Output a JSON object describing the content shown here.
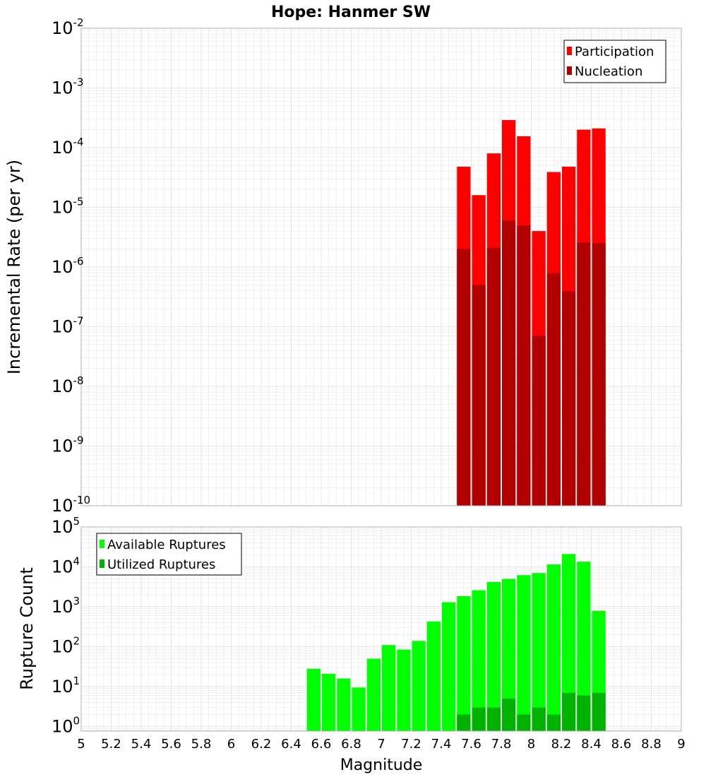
{
  "title": "Hope: Hanmer SW",
  "colors": {
    "participation": "#ff0000",
    "nucleation": "#b20000",
    "available": "#00ff00",
    "utilized": "#00b200",
    "gridline": "#e6e6e6",
    "plot_border": "#b0b0b0"
  },
  "x_axis": {
    "label": "Magnitude",
    "range": [
      5,
      9
    ],
    "ticks": [
      "5",
      "5.2",
      "5.4",
      "5.6",
      "5.8",
      "6",
      "6.2",
      "6.4",
      "6.6",
      "6.8",
      "7",
      "7.2",
      "7.4",
      "7.6",
      "7.8",
      "8",
      "8.2",
      "8.4",
      "8.6",
      "8.8",
      "9"
    ]
  },
  "chart_data": [
    {
      "type": "bar",
      "title": "Hope: Hanmer SW",
      "xlabel": "",
      "ylabel": "Incremental Rate (per yr)",
      "yscale": "log",
      "ylim": [
        1e-10,
        0.01
      ],
      "y_ticks": [
        {
          "base": "10",
          "exp": "-10"
        },
        {
          "base": "10",
          "exp": "-9"
        },
        {
          "base": "10",
          "exp": "-8"
        },
        {
          "base": "10",
          "exp": "-7"
        },
        {
          "base": "10",
          "exp": "-6"
        },
        {
          "base": "10",
          "exp": "-5"
        },
        {
          "base": "10",
          "exp": "-4"
        },
        {
          "base": "10",
          "exp": "-3"
        },
        {
          "base": "10",
          "exp": "-2"
        }
      ],
      "bin_width": 0.1,
      "grid": true,
      "legend_position": "top-right",
      "x": [
        7.55,
        7.65,
        7.75,
        7.85,
        7.95,
        8.05,
        8.15,
        8.25,
        8.35,
        8.45
      ],
      "series": [
        {
          "name": "Participation",
          "color": "#ff0000",
          "values": [
            4.8e-05,
            1.6e-05,
            8e-05,
            0.00029,
            0.000155,
            4e-06,
            3.9e-05,
            4.8e-05,
            0.0002,
            0.00021
          ]
        },
        {
          "name": "Nucleation",
          "color": "#b20000",
          "values": [
            2e-06,
            5e-07,
            2.1e-06,
            6e-06,
            5e-06,
            7e-08,
            7.9e-07,
            3.9e-07,
            2.6e-06,
            2.5e-06
          ]
        }
      ]
    },
    {
      "type": "bar",
      "xlabel": "Magnitude",
      "ylabel": "Rupture Count",
      "yscale": "log",
      "ylim": [
        0.77,
        100000.0
      ],
      "y_ticks": [
        {
          "base": "10",
          "exp": "0"
        },
        {
          "base": "10",
          "exp": "1"
        },
        {
          "base": "10",
          "exp": "2"
        },
        {
          "base": "10",
          "exp": "3"
        },
        {
          "base": "10",
          "exp": "4"
        },
        {
          "base": "10",
          "exp": "5"
        }
      ],
      "bin_width": 0.1,
      "grid": true,
      "legend_position": "top-left",
      "x": [
        6.55,
        6.65,
        6.75,
        6.85,
        6.95,
        7.05,
        7.15,
        7.25,
        7.35,
        7.45,
        7.55,
        7.65,
        7.75,
        7.85,
        7.95,
        8.05,
        8.15,
        8.25,
        8.35,
        8.45
      ],
      "series": [
        {
          "name": "Available Ruptures",
          "color": "#00ff00",
          "values": [
            28,
            21,
            16,
            9.5,
            50,
            110,
            85,
            140,
            430,
            1300,
            1850,
            2600,
            4200,
            5000,
            6200,
            7000,
            11500,
            21000,
            13500,
            790
          ]
        },
        {
          "name": "Utilized Ruptures",
          "color": "#00b200",
          "values": [
            null,
            null,
            null,
            null,
            null,
            null,
            null,
            null,
            null,
            null,
            2,
            3,
            3,
            5,
            2,
            3,
            2,
            7,
            6,
            7
          ]
        }
      ]
    }
  ]
}
